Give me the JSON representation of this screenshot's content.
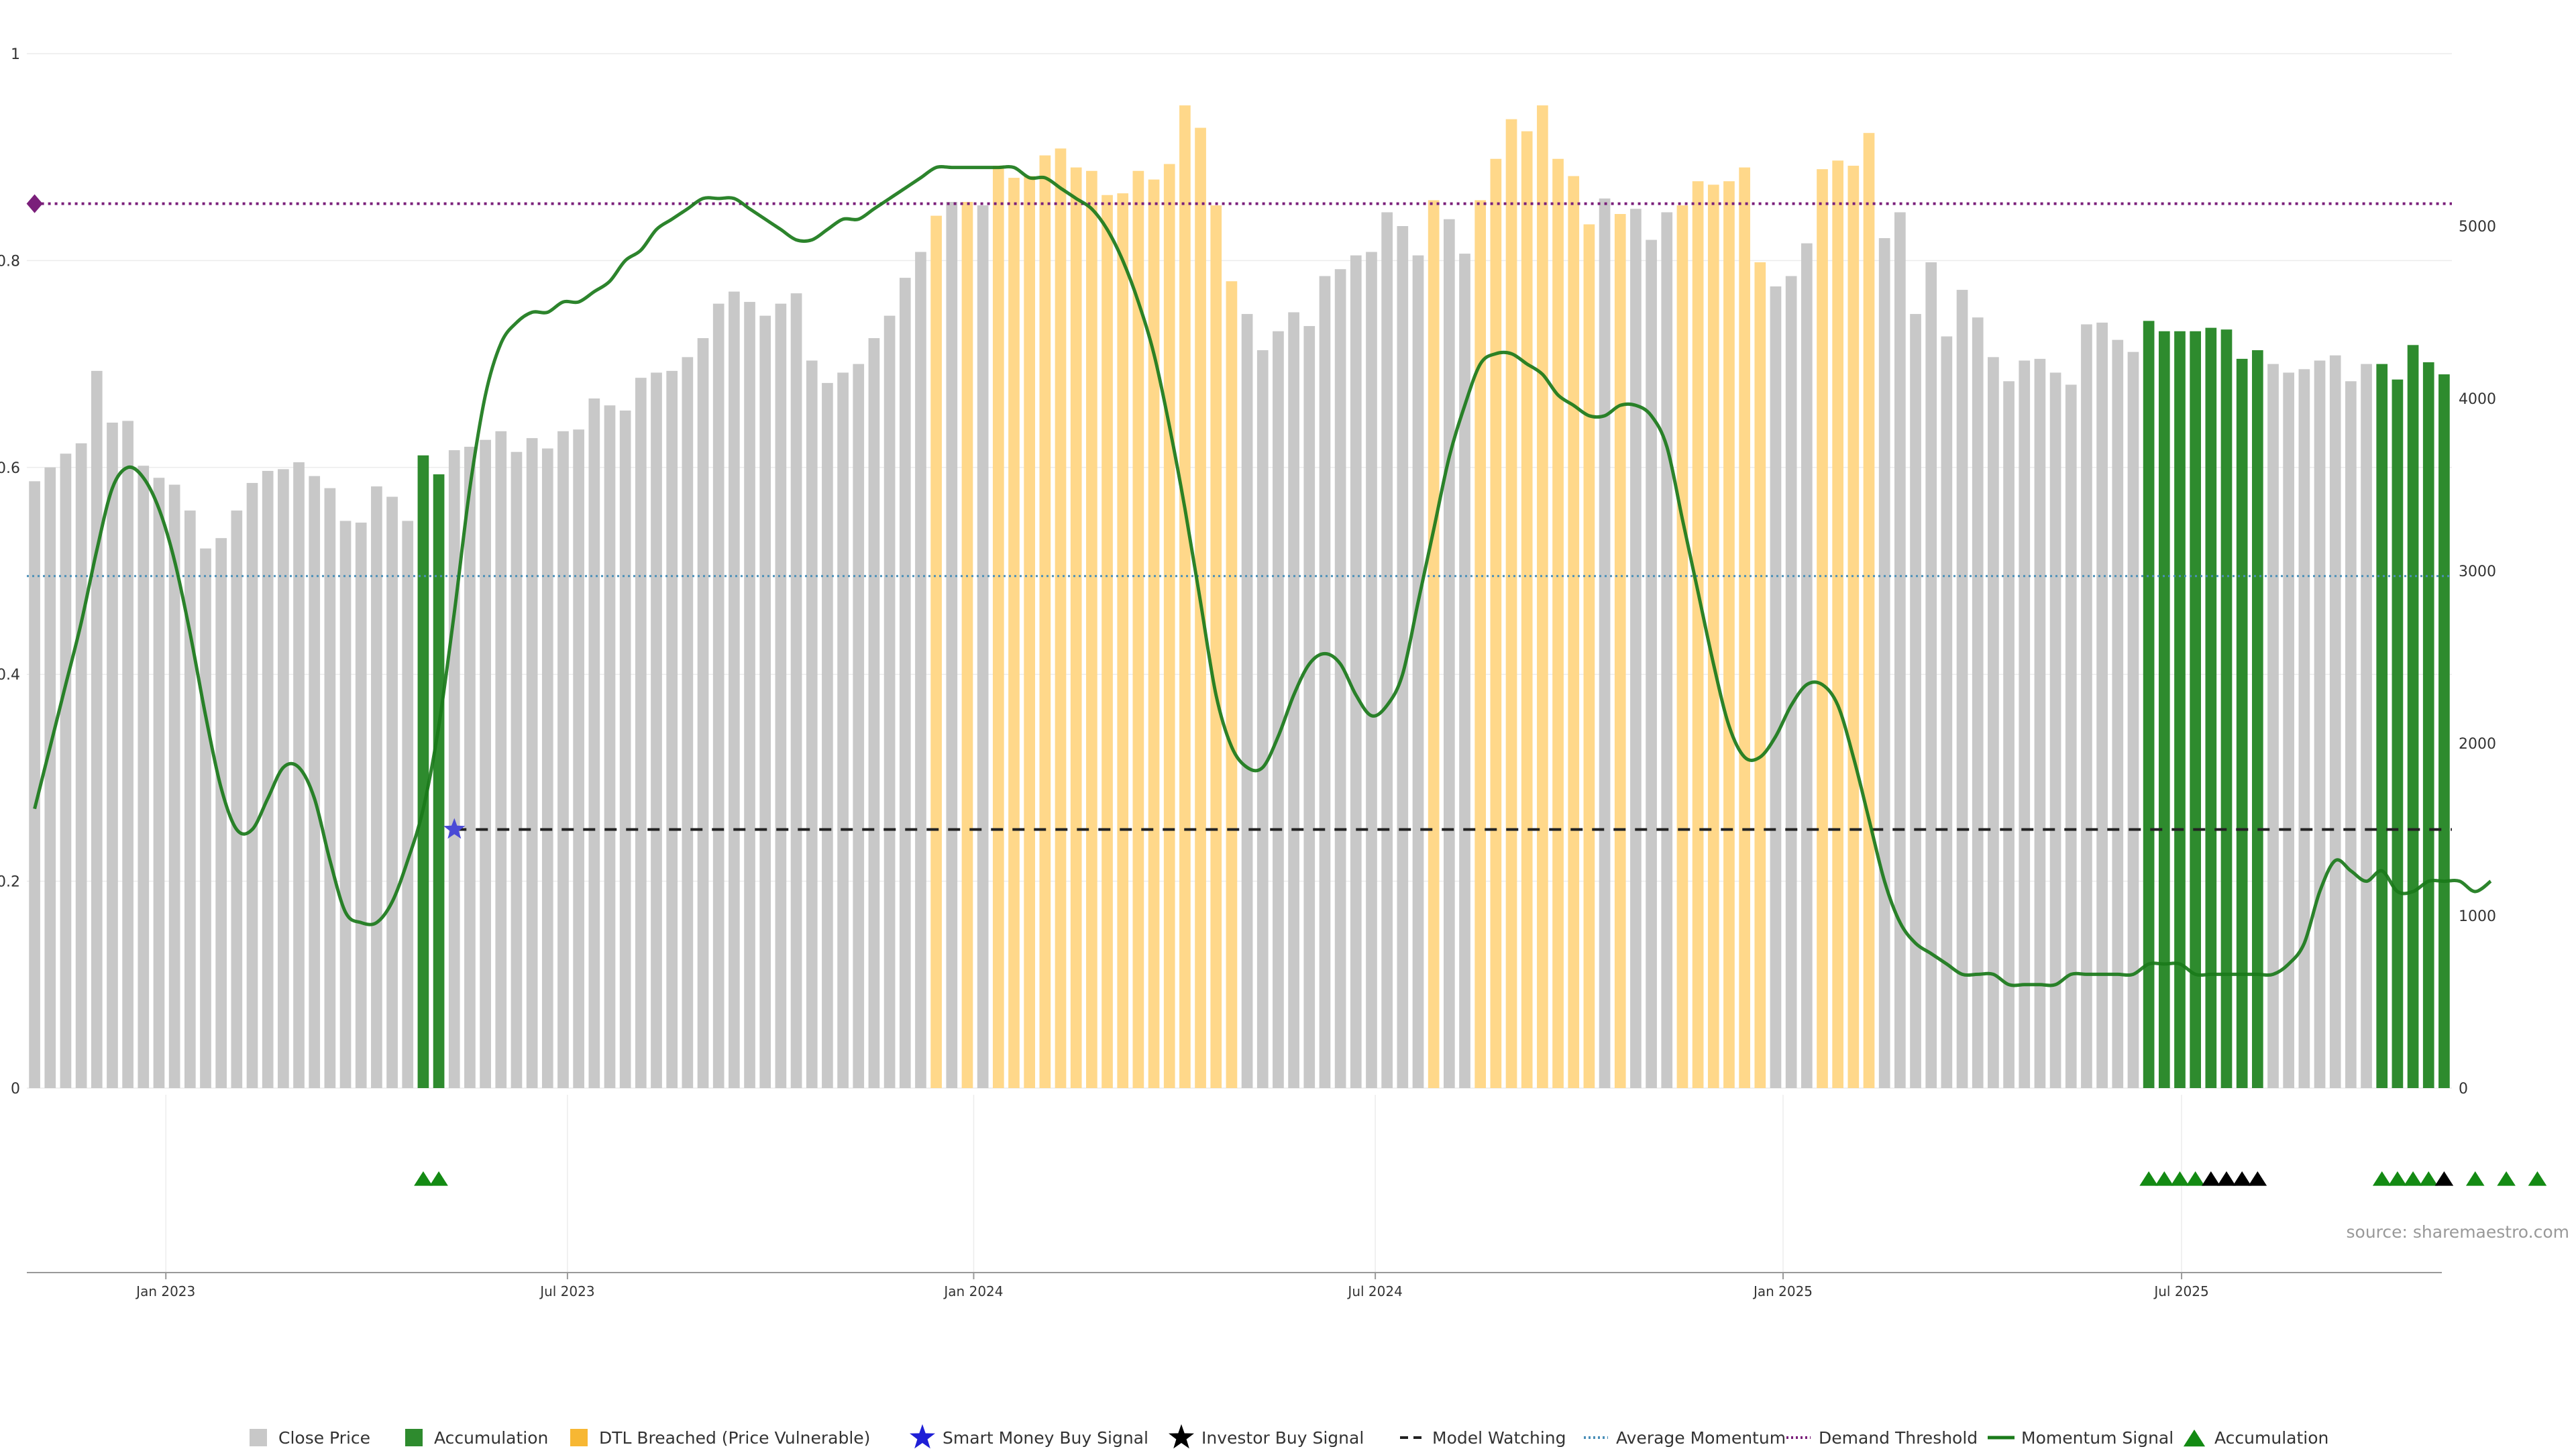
{
  "chart_data": {
    "type": "bar",
    "left_axis": {
      "ticks": [
        "0",
        "0.2",
        "0.4",
        "0.6",
        "0.8",
        "1"
      ],
      "ylim": [
        0,
        1
      ]
    },
    "right_axis": {
      "ticks": [
        "0",
        "1000",
        "2000",
        "3000",
        "4000",
        "5000"
      ],
      "ylim": [
        0,
        6000
      ]
    },
    "x_ticks": [
      {
        "label": "Jan 2023",
        "week": 9
      },
      {
        "label": "Jul 2023",
        "week": 35
      },
      {
        "label": "Jan 2024",
        "week": 61.3
      },
      {
        "label": "Jul 2024",
        "week": 87.3
      },
      {
        "label": "Jan 2025",
        "week": 113.7
      },
      {
        "label": "Jul 2025",
        "week": 139.5
      }
    ],
    "x_range_weeks": [
      0,
      157
    ],
    "bars": {
      "unit": "weekly close price",
      "values": [
        3520,
        3600,
        3680,
        3740,
        4160,
        3860,
        3870,
        3610,
        3540,
        3500,
        3350,
        3130,
        3190,
        3350,
        3510,
        3580,
        3590,
        3630,
        3550,
        3480,
        3290,
        3280,
        3490,
        3430,
        3290,
        3670,
        3560,
        3700,
        3720,
        3760,
        3810,
        3690,
        3770,
        3710,
        3810,
        3820,
        4000,
        3960,
        3930,
        4120,
        4150,
        4160,
        4240,
        4350,
        4550,
        4620,
        4560,
        4480,
        4550,
        4610,
        4220,
        4090,
        4150,
        4200,
        4350,
        4480,
        4700,
        4850,
        5060,
        5140,
        5140,
        5120,
        5350,
        5280,
        5290,
        5410,
        5450,
        5340,
        5320,
        5180,
        5190,
        5320,
        5270,
        5360,
        5700,
        5570,
        5120,
        4680,
        4490,
        4280,
        4390,
        4500,
        4420,
        4710,
        4750,
        4830,
        4850,
        5080,
        5000,
        4830,
        5150,
        5040,
        4840,
        5150,
        5390,
        5620,
        5550,
        5700,
        5390,
        5290,
        5010,
        5160,
        5070,
        5100,
        4920,
        5080,
        5120,
        5260,
        5240,
        5260,
        5340,
        4790,
        4650,
        4710,
        4900,
        5330,
        5380,
        5350,
        5540,
        4930,
        5080,
        4490,
        4790,
        4360,
        4630,
        4470,
        4240,
        4100,
        4220,
        4230,
        4150,
        4080,
        4430,
        4440,
        4340,
        4270,
        4450,
        4390,
        4390,
        4390,
        4410,
        4400,
        4230,
        4280,
        4200,
        4150,
        4170,
        4220,
        4250,
        4100,
        4200,
        4200,
        4110,
        4310,
        4210,
        4140
      ],
      "accumulation_weeks": [
        25,
        26,
        136,
        137,
        138,
        139,
        140,
        141,
        142,
        143,
        151,
        152,
        153,
        154,
        155,
        157,
        159,
        161
      ],
      "dtl_weeks": [
        58,
        60,
        62,
        63,
        64,
        65,
        66,
        67,
        68,
        69,
        70,
        71,
        72,
        73,
        74,
        75,
        76,
        77,
        90,
        93,
        94,
        95,
        96,
        97,
        98,
        99,
        100,
        102,
        106,
        107,
        108,
        109,
        110,
        111,
        115,
        116,
        117,
        118
      ]
    },
    "series": [
      {
        "name": "Momentum Signal",
        "values": [
          0.27,
          0.33,
          0.39,
          0.45,
          0.52,
          0.58,
          0.6,
          0.59,
          0.56,
          0.51,
          0.44,
          0.36,
          0.29,
          0.25,
          0.25,
          0.28,
          0.31,
          0.31,
          0.28,
          0.22,
          0.17,
          0.16,
          0.16,
          0.18,
          0.22,
          0.27,
          0.35,
          0.46,
          0.58,
          0.67,
          0.72,
          0.74,
          0.75,
          0.75,
          0.76,
          0.76,
          0.77,
          0.78,
          0.8,
          0.81,
          0.83,
          0.84,
          0.85,
          0.86,
          0.86,
          0.86,
          0.85,
          0.84,
          0.83,
          0.82,
          0.82,
          0.83,
          0.84,
          0.84,
          0.85,
          0.86,
          0.87,
          0.88,
          0.89,
          0.89,
          0.89,
          0.89,
          0.89,
          0.89,
          0.88,
          0.88,
          0.87,
          0.86,
          0.85,
          0.83,
          0.8,
          0.76,
          0.71,
          0.64,
          0.56,
          0.47,
          0.38,
          0.33,
          0.31,
          0.31,
          0.34,
          0.38,
          0.41,
          0.42,
          0.41,
          0.38,
          0.36,
          0.37,
          0.4,
          0.47,
          0.54,
          0.61,
          0.66,
          0.7,
          0.71,
          0.71,
          0.7,
          0.69,
          0.67,
          0.66,
          0.65,
          0.65,
          0.66,
          0.66,
          0.65,
          0.62,
          0.55,
          0.48,
          0.41,
          0.35,
          0.32,
          0.32,
          0.34,
          0.37,
          0.39,
          0.39,
          0.37,
          0.32,
          0.26,
          0.2,
          0.16,
          0.14,
          0.13,
          0.12,
          0.11,
          0.11,
          0.11,
          0.1,
          0.1,
          0.1,
          0.1,
          0.11,
          0.11,
          0.11,
          0.11,
          0.11,
          0.12,
          0.12,
          0.12,
          0.11,
          0.11,
          0.11,
          0.11,
          0.11,
          0.11,
          0.12,
          0.14,
          0.19,
          0.22,
          0.21,
          0.2,
          0.21,
          0.19,
          0.19,
          0.2,
          0.2,
          0.2,
          0.19,
          0.2
        ]
      }
    ],
    "reference_lines": [
      {
        "name": "Demand Threshold",
        "y": 0.855
      },
      {
        "name": "Average Momentum",
        "y": 0.495
      },
      {
        "name": "Model Watching",
        "y": 0.25,
        "x_start_week": 27
      }
    ],
    "markers": {
      "smart_money_buy_signal": [
        {
          "week": 27,
          "y": 0.25
        }
      ],
      "demand_threshold_marker": {
        "week": 0,
        "y": 0.855
      },
      "accumulation_triangles": [
        25,
        26,
        136,
        137,
        138,
        139,
        151,
        152,
        153,
        154,
        157,
        159,
        161
      ],
      "investor_buy_triangles": [
        140,
        141,
        142,
        143,
        155
      ]
    },
    "legend": {
      "placement": "bottom",
      "items": [
        {
          "label": "Close Price",
          "symbol": "square",
          "color": "#c8c8c8"
        },
        {
          "label": "Accumulation",
          "symbol": "square",
          "color": "#2e8b2e"
        },
        {
          "label": "DTL Breached (Price Vulnerable)",
          "symbol": "square",
          "color": "#f7b733"
        },
        {
          "label": "Smart Money Buy Signal",
          "symbol": "star",
          "color": "#1f1fd6"
        },
        {
          "label": "Investor Buy Signal",
          "symbol": "star",
          "color": "#000000"
        },
        {
          "label": "Model Watching",
          "symbol": "dash",
          "color": "#222222"
        },
        {
          "label": "Average Momentum",
          "symbol": "dot",
          "color": "#4a8fb8"
        },
        {
          "label": "Demand Threshold",
          "symbol": "dot",
          "color": "#7a1f7a"
        },
        {
          "label": "Momentum Signal",
          "symbol": "line",
          "color": "#1a7a1a"
        },
        {
          "label": "Accumulation",
          "symbol": "triangle",
          "color": "#138a13"
        }
      ]
    },
    "grid": true
  },
  "source": "source: sharemaestro.com",
  "colors": {
    "close_bar": "#c8c8c8",
    "accum_bar": "#2e8b2e",
    "dtl_bar": "#ffd88a",
    "momentum": "#1a7a1a",
    "threshold": "#7a1f7a",
    "avg_momentum": "#4a8fb8",
    "watching": "#222222",
    "smart_star": "#4a4ad6",
    "accum_triangle": "#138a13",
    "investor_triangle": "#000000"
  }
}
